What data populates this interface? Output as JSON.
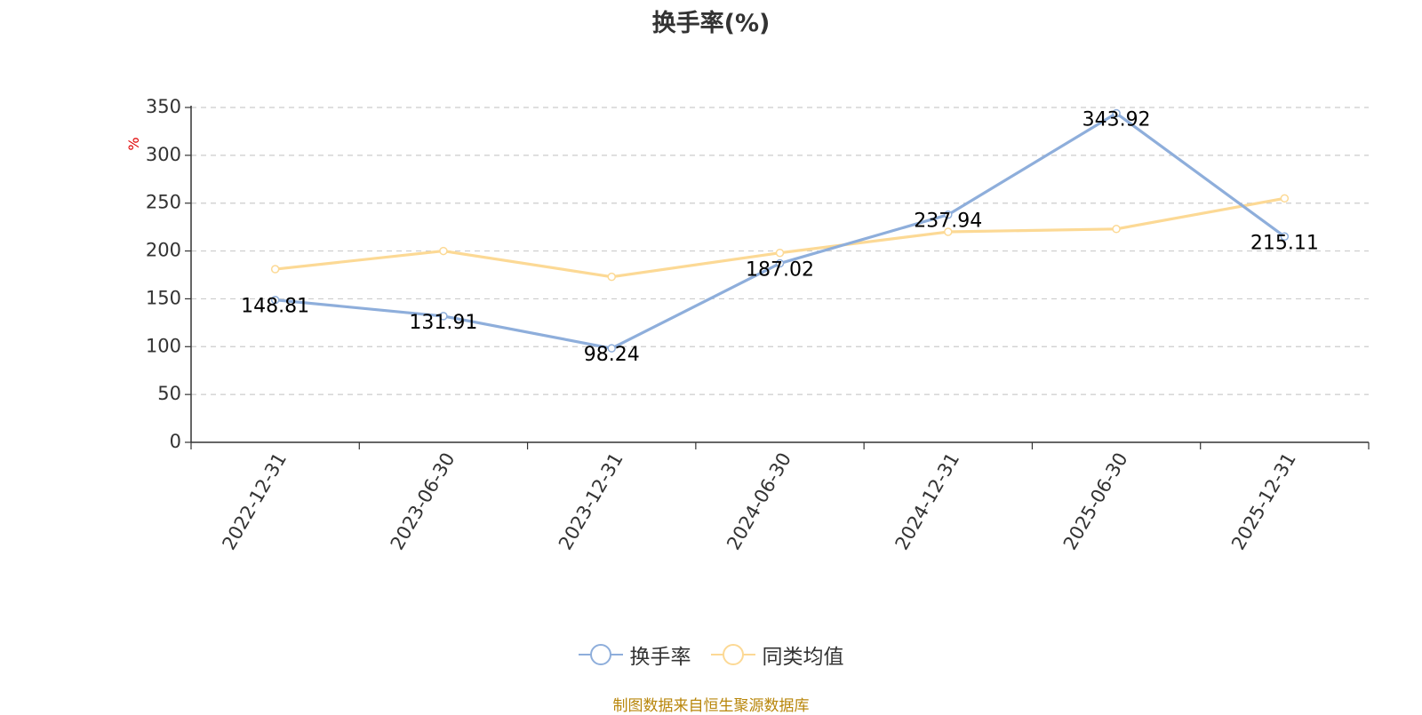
{
  "chart_data": {
    "type": "line",
    "title": "换手率(%)",
    "ylabel": "%",
    "xlabel": "",
    "ylim": [
      0,
      350
    ],
    "yticks": [
      0,
      50,
      100,
      150,
      200,
      250,
      300,
      350
    ],
    "categories": [
      "2022-12-31",
      "2023-06-30",
      "2023-12-31",
      "2024-06-30",
      "2024-12-31",
      "2025-06-30",
      "2025-12-31"
    ],
    "series": [
      {
        "name": "换手率",
        "color": "#8eaedb",
        "values": [
          148.81,
          131.91,
          98.24,
          187.02,
          237.94,
          343.92,
          215.11
        ],
        "labels": [
          "148.81",
          "131.91",
          "98.24",
          "187.02",
          "237.94",
          "343.92",
          "215.11"
        ]
      },
      {
        "name": "同类均值",
        "color": "#fcd995",
        "values": [
          181,
          200,
          173,
          198,
          220,
          223,
          255
        ]
      }
    ],
    "grid": true,
    "legend_position": "bottom-center",
    "source": "制图数据来自恒生聚源数据库"
  }
}
